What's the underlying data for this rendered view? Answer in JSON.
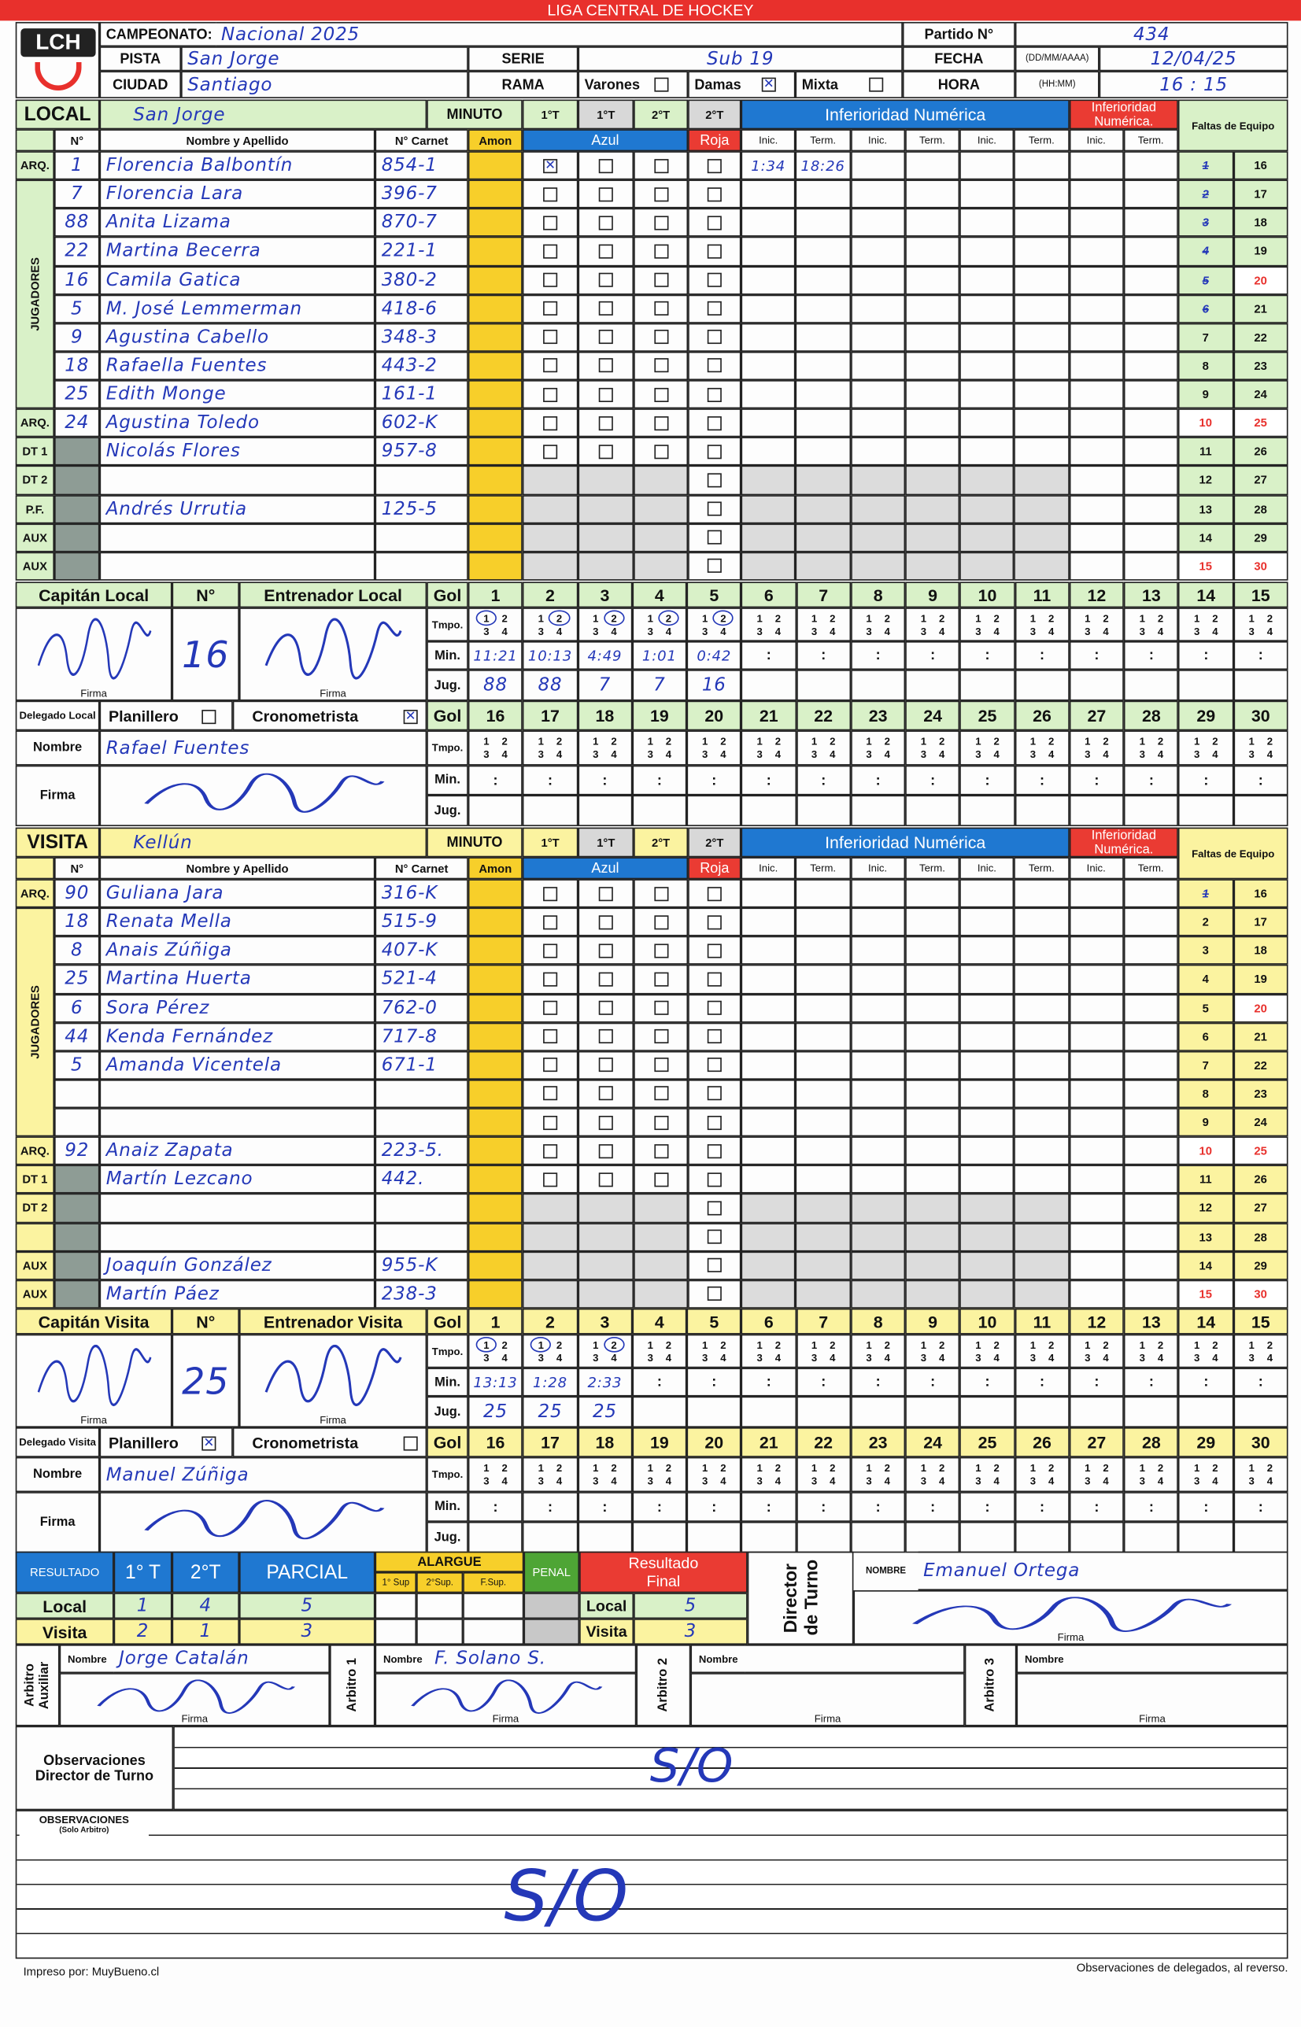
{
  "league_title": "LIGA CENTRAL DE HOCKEY",
  "logo_text": "LCH",
  "colors": {
    "red": "#e8302c",
    "blue": "#1f78d1",
    "local_green": "#d9f1c8",
    "visita_yellow": "#fbf3a0",
    "amon_yellow": "#f7cf2a",
    "ink": "#2438b8"
  },
  "header": {
    "campeonato_label": "CAMPEONATO:",
    "campeonato": "Nacional 2025",
    "partido_label": "Partido N°",
    "partido": "434",
    "pista_label": "PISTA",
    "pista": "San Jorge",
    "serie_label": "SERIE",
    "serie": "Sub 19",
    "fecha_label": "FECHA",
    "fecha_format": "(DD/MM/AAAA)",
    "fecha": "12/04/25",
    "ciudad_label": "CIUDAD",
    "ciudad": "Santiago",
    "rama_label": "RAMA",
    "rama_options": [
      {
        "label": "Varones",
        "checked": false
      },
      {
        "label": "Damas",
        "checked": true
      },
      {
        "label": "Mixta",
        "checked": false
      }
    ],
    "hora_label": "HORA",
    "hora_format": "(HH:MM)",
    "hora": "16 : 15"
  },
  "columns": {
    "minuto": "MINUTO",
    "periods": [
      "1°T",
      "1°T",
      "2°T",
      "2°T"
    ],
    "inferioridad": "Inferioridad Numérica",
    "inferioridad_red": "Inferioridad Numérica.",
    "faltas": "Faltas de Equipo",
    "num": "N°",
    "name": "Nombre y Apellido",
    "carnet": "N° Carnet",
    "amon": "Amon",
    "azul": "Azul",
    "roja": "Roja",
    "inic": "Inic.",
    "term": "Term.",
    "jugadores": "JUGADORES",
    "gol": "Gol",
    "tmpo": "Tmpo.",
    "min": "Min.",
    "jug": "Jug.",
    "tmpo_digits": [
      "1",
      "2",
      "3",
      "4"
    ],
    "firma": "Firma",
    "nombre": "Nombre"
  },
  "goal_numbers": [
    1,
    2,
    3,
    4,
    5,
    6,
    7,
    8,
    9,
    10,
    11,
    12,
    13,
    14,
    15,
    16,
    17,
    18,
    19,
    20,
    21,
    22,
    23,
    24,
    25,
    26,
    27,
    28,
    29,
    30
  ],
  "foul_numbers": [
    1,
    2,
    3,
    4,
    5,
    6,
    7,
    8,
    9,
    10,
    11,
    12,
    13,
    14,
    15,
    16,
    17,
    18,
    19,
    20,
    21,
    22,
    23,
    24,
    25,
    26,
    27,
    28,
    29,
    30
  ],
  "foul_red_numbers": [
    10,
    15,
    20,
    25,
    30
  ],
  "local": {
    "label": "LOCAL",
    "team": "San Jorge",
    "rows": [
      {
        "role": "ARQ.",
        "num": "1",
        "name": "Florencia Balbontín",
        "carnet": "854-1",
        "azul": [
          true,
          false,
          false
        ],
        "inf": [
          "1:34",
          "18:26"
        ]
      },
      {
        "num": "7",
        "name": "Florencia Lara",
        "carnet": "396-7"
      },
      {
        "num": "88",
        "name": "Anita Lizama",
        "carnet": "870-7"
      },
      {
        "num": "22",
        "name": "Martina Becerra",
        "carnet": "221-1"
      },
      {
        "num": "16",
        "name": "Camila Gatica",
        "carnet": "380-2"
      },
      {
        "num": "5",
        "name": "M. José Lemmerman",
        "carnet": "418-6"
      },
      {
        "num": "9",
        "name": "Agustina Cabello",
        "carnet": "348-3"
      },
      {
        "num": "18",
        "name": "Rafaella Fuentes",
        "carnet": "443-2"
      },
      {
        "num": "25",
        "name": "Edith Monge",
        "carnet": "161-1"
      },
      {
        "role": "ARQ.",
        "num": "24",
        "name": "Agustina Toledo",
        "carnet": "602-K"
      },
      {
        "role": "DT 1",
        "name": "Nicolás Flores",
        "carnet": "957-8"
      },
      {
        "role": "DT 2",
        "name": "",
        "carnet": ""
      },
      {
        "role": "P.F.",
        "name": "Andrés Urrutia",
        "carnet": "125-5"
      },
      {
        "role": "AUX",
        "name": "",
        "carnet": ""
      },
      {
        "role": "AUX",
        "name": "",
        "carnet": ""
      }
    ],
    "fouls_marked": 6,
    "goals": [
      {
        "period": 1,
        "time": "11:21",
        "player": "88"
      },
      {
        "period": 2,
        "time": "10:13",
        "player": "88"
      },
      {
        "period": 2,
        "time": "4:49",
        "player": "7"
      },
      {
        "period": 2,
        "time": "1:01",
        "player": "7"
      },
      {
        "period": 2,
        "time": "0:42",
        "player": "16"
      }
    ],
    "captain_label": "Capitán Local",
    "number_label": "N°",
    "captain_number": "16",
    "coach_label": "Entrenador Local",
    "delegado_label": "Delegado Local",
    "planillero": {
      "label": "Planillero",
      "checked": false
    },
    "cronometrista": {
      "label": "Cronometrista",
      "checked": true
    },
    "delegado_nombre": "Rafael Fuentes"
  },
  "visita": {
    "label": "VISITA",
    "team": "Kellún",
    "rows": [
      {
        "role": "ARQ.",
        "num": "90",
        "name": "Guliana Jara",
        "carnet": "316-K"
      },
      {
        "num": "18",
        "name": "Renata Mella",
        "carnet": "515-9"
      },
      {
        "num": "8",
        "name": "Anais Zúñiga",
        "carnet": "407-K"
      },
      {
        "num": "25",
        "name": "Martina Huerta",
        "carnet": "521-4"
      },
      {
        "num": "6",
        "name": "Sora Pérez",
        "carnet": "762-0"
      },
      {
        "num": "44",
        "name": "Kenda Fernández",
        "carnet": "717-8"
      },
      {
        "num": "5",
        "name": "Amanda Vicentela",
        "carnet": "671-1"
      },
      {
        "num": "",
        "name": "",
        "carnet": ""
      },
      {
        "num": "",
        "name": "",
        "carnet": ""
      },
      {
        "role": "ARQ.",
        "num": "92",
        "name": "Anaiz Zapata",
        "carnet": "223-5."
      },
      {
        "role": "DT 1",
        "name": "Martín Lezcano",
        "carnet": "442."
      },
      {
        "role": "DT 2",
        "name": "",
        "carnet": ""
      },
      {
        "role": "",
        "name": "",
        "carnet": ""
      },
      {
        "role": "AUX",
        "name": "Joaquín González",
        "carnet": "955-K"
      },
      {
        "role": "AUX",
        "name": "Martín Páez",
        "carnet": "238-3"
      }
    ],
    "fouls_marked": 1,
    "goals": [
      {
        "period": 1,
        "time": "13:13",
        "player": "25"
      },
      {
        "period": 1,
        "time": "1:28",
        "player": "25"
      },
      {
        "period": 2,
        "time": "2:33",
        "player": "25"
      }
    ],
    "captain_label": "Capitán Visita",
    "number_label": "N°",
    "captain_number": "25",
    "coach_label": "Entrenador Visita",
    "delegado_label": "Delegado Visita",
    "planillero": {
      "label": "Planillero",
      "checked": true
    },
    "cronometrista": {
      "label": "Cronometrista",
      "checked": false
    },
    "delegado_nombre": "Manuel Zúñiga"
  },
  "result": {
    "label": "RESULTADO",
    "t1_label": "1° T",
    "t2_label": "2°T",
    "parcial_label": "PARCIAL",
    "alargue_label": "ALARGUE",
    "alargue_cols": [
      "1° Sup",
      "2°Sup.",
      "F.Sup."
    ],
    "penal_label": "PENAL",
    "final_label": "Resultado Final",
    "rows": [
      {
        "label": "Local",
        "t1": "1",
        "t2": "4",
        "parcial": "5",
        "final_label": "Local",
        "final": "5"
      },
      {
        "label": "Visita",
        "t1": "2",
        "t2": "1",
        "parcial": "3",
        "final_label": "Visita",
        "final": "3"
      }
    ],
    "director_label": "Director de Turno",
    "director_nombre_label": "NOMBRE",
    "director_nombre": "Emanuel Ortega"
  },
  "referees": [
    {
      "label": "Arbitro Auxiliar",
      "nombre": "Jorge Catalán"
    },
    {
      "label": "Arbitro 1",
      "nombre": "F. Solano S."
    },
    {
      "label": "Arbitro 2",
      "nombre": ""
    },
    {
      "label": "Arbitro 3",
      "nombre": ""
    }
  ],
  "observaciones_director": {
    "label": "Observaciones Director de Turno",
    "text": "S/O"
  },
  "observaciones_arbitro": {
    "label": "OBSERVACIONES",
    "sublabel": "(Solo Arbitro)",
    "text": "S/O"
  },
  "footer": {
    "left": "Impreso por: MuyBueno.cl",
    "right": "Observaciones de delegados, al reverso."
  }
}
